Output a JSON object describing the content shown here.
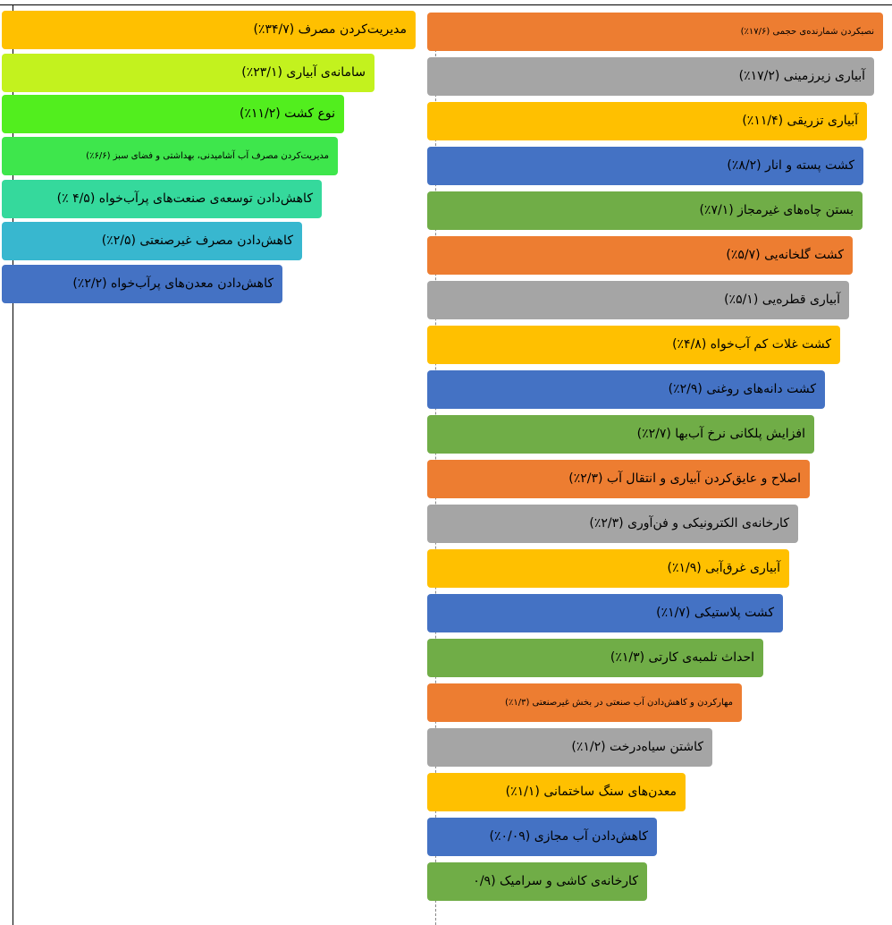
{
  "left": [
    {
      "label": "مدیریت‌کردن مصرف (۳۴/۷٪)"
    },
    {
      "label": "سامانه‌ی آبیاری (۲۳/۱٪)"
    },
    {
      "label": "نوع کشت (۱۱/۲٪)"
    },
    {
      "label": "مدیریت‌کردن مصرف آب آشامیدنی، بهداشتی و فضای سبز (۶/۶٪)"
    },
    {
      "label": "کاهش‌دادن توسعه‌ی صنعت‌های پرآب‌خواه (۴/۵ ٪)"
    },
    {
      "label": "کاهش‌دادن مصرف غیرصنعتی (۲/۵٪)"
    },
    {
      "label": "کاهش‌دادن معدن‌های پرآب‌خواه (۲/۲٪)"
    }
  ],
  "right": [
    {
      "label": "نصبکردن شمارنده‌ی حجمی (۱۷/۶٪)"
    },
    {
      "label": "آبیاری زیرزمینی (۱۷/۲٪)"
    },
    {
      "label": "آبیاری تزریقی (۱۱/۴٪)"
    },
    {
      "label": "کشت پسته و انار (۸/۲٪)"
    },
    {
      "label": "بستن چاه‌های غیرمجاز (۷/۱٪)"
    },
    {
      "label": "کشت گلخانه‌یی (۵/۷٪)"
    },
    {
      "label": "آبیاری قطره‌یی (۵/۱٪)"
    },
    {
      "label": "کشت غلات کم آب‌خواه (۴/۸٪)"
    },
    {
      "label": "کشت دانه‌های روغنی (۲/۹٪)"
    },
    {
      "label": "افزایش پلکانی نرخ آب‌بها (۲/۷٪)"
    },
    {
      "label": "اصلاح و عایق‌کردن آبیاری و انتقال آب (۲/۳٪)"
    },
    {
      "label": "کارخانه‌ی الکترونیکی و فن‌آوری (۲/۳٪)"
    },
    {
      "label": "آبیاری غرق‌آبی (۱/۹٪)"
    },
    {
      "label": "کشت پلاستیکی (۱/۷٪)"
    },
    {
      "label": "احداث تلمبه‌ی کارتی (۱/۳٪)"
    },
    {
      "label": "مهارکردن و کاهش‌دادن آب صنعتی در بخش غیرصنعتی (۱/۳٪)"
    },
    {
      "label": "کاشتن سیاه‌درخت (۱/۲٪)"
    },
    {
      "label": "معدن‌های سنگ ساختمانی (۱/۱٪)"
    },
    {
      "label": "کاهش‌دادن آب مجازی (۰/۰۹٪)"
    },
    {
      "label": "کارخانه‌ی کاشی و سرامیک (۰/۹"
    }
  ]
}
